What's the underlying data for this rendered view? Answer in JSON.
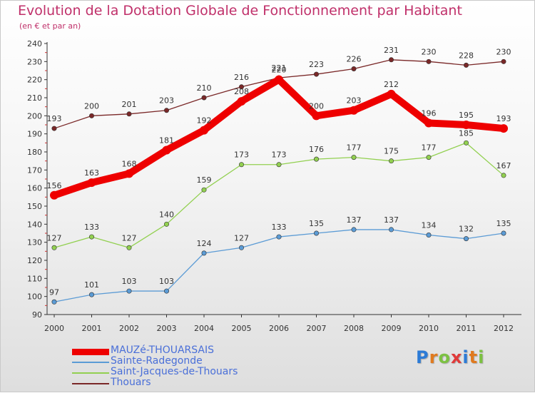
{
  "header": {
    "title": "Evolution de la Dotation Globale de Fonctionnement par Habitant",
    "subtitle": "(en € et par an)"
  },
  "logo": {
    "text": "Proxiti",
    "letter_colors": [
      "#2c7bd6",
      "#e07a1f",
      "#7cc142",
      "#e03a3a",
      "#2c7bd6",
      "#e07a1f",
      "#7cc142"
    ]
  },
  "chart_data": {
    "type": "line",
    "title": "Evolution de la Dotation Globale de Fonctionnement par Habitant",
    "subtitle": "(en € et par an)",
    "xlabel": "",
    "ylabel": "",
    "x": [
      2000,
      2001,
      2002,
      2003,
      2004,
      2005,
      2006,
      2007,
      2008,
      2009,
      2010,
      2011,
      2012
    ],
    "ylim": [
      90,
      240
    ],
    "yticks": [
      90,
      100,
      110,
      120,
      130,
      140,
      150,
      160,
      170,
      180,
      190,
      200,
      210,
      220,
      230,
      240
    ],
    "grid": false,
    "legend_position": "bottom-left",
    "series": [
      {
        "name": "MAUZé-THOUARSAIS",
        "color": "#ee0000",
        "values": [
          156,
          163,
          168,
          181,
          192,
          208,
          220,
          200,
          203,
          212,
          196,
          195,
          193
        ]
      },
      {
        "name": "Sainte-Radegonde",
        "color": "#5b9bd5",
        "values": [
          97,
          101,
          103,
          103,
          124,
          127,
          133,
          135,
          137,
          137,
          134,
          132,
          135
        ]
      },
      {
        "name": "Saint-Jacques-de-Thouars",
        "color": "#92d050",
        "values": [
          127,
          133,
          127,
          140,
          159,
          173,
          173,
          176,
          177,
          175,
          177,
          185,
          167
        ]
      },
      {
        "name": "Thouars",
        "color": "#7a2828",
        "values": [
          193,
          200,
          201,
          203,
          210,
          216,
          221,
          223,
          226,
          231,
          230,
          228,
          230
        ]
      }
    ]
  }
}
